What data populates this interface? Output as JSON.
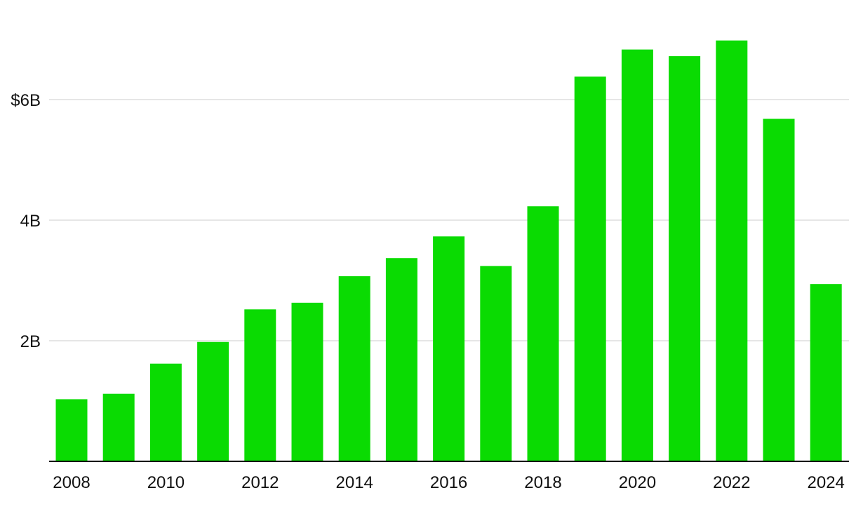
{
  "chart_data": {
    "type": "bar",
    "title": "",
    "xlabel": "",
    "ylabel": "",
    "bar_color": "#0adb02",
    "grid": true,
    "ylim": [
      0,
      7.5
    ],
    "y_ticks": [
      {
        "value": 2,
        "label": "2B"
      },
      {
        "value": 4,
        "label": "4B"
      },
      {
        "value": 6,
        "label": "$6B"
      }
    ],
    "x_tick_labels": [
      "2008",
      "2010",
      "2012",
      "2014",
      "2016",
      "2018",
      "2020",
      "2022",
      "2024"
    ],
    "categories": [
      "2008",
      "2009",
      "2010",
      "2011",
      "2012",
      "2013",
      "2014",
      "2015",
      "2016",
      "2017",
      "2018",
      "2019",
      "2020",
      "2021",
      "2022",
      "2023",
      "2024"
    ],
    "values": [
      1.03,
      1.12,
      1.62,
      1.98,
      2.52,
      2.63,
      3.07,
      3.37,
      3.73,
      3.24,
      4.23,
      6.38,
      6.83,
      6.72,
      6.98,
      5.68,
      2.94
    ]
  }
}
